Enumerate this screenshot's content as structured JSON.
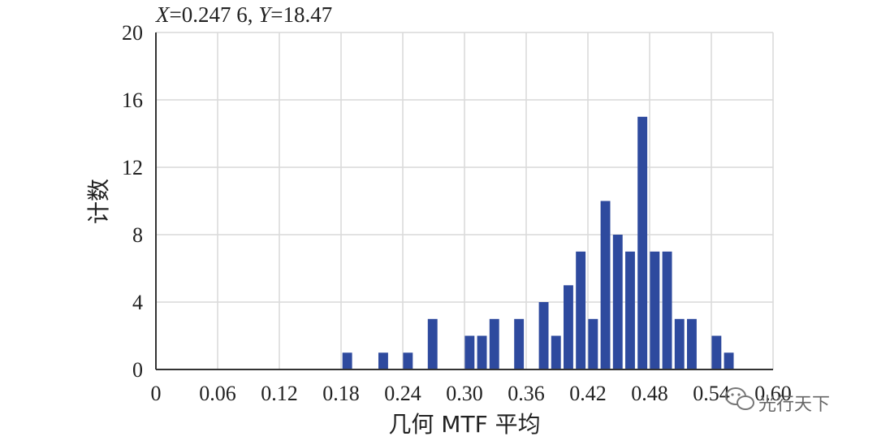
{
  "readout": {
    "x_var": "X",
    "x_value": "=0.247 6, ",
    "y_var": "Y",
    "y_value": "=18.47"
  },
  "watermark": {
    "text": "光行天下",
    "icon": "wechat-icon"
  },
  "colors": {
    "bar": "#2e4a9e",
    "grid": "#d9d9d9",
    "axis": "#333333"
  },
  "chart_data": {
    "type": "bar",
    "xlabel": "几何 MTF 平均",
    "ylabel": "计数",
    "xlim": [
      0,
      0.6
    ],
    "ylim": [
      0,
      20
    ],
    "grid": true,
    "x_tick_values": [
      0,
      0.06,
      0.12,
      0.18,
      0.24,
      0.3,
      0.36,
      0.42,
      0.48,
      0.54,
      0.6
    ],
    "x_tick_labels": [
      "0",
      "0.06",
      "0.12",
      "0.18",
      "0.24",
      "0.30",
      "0.36",
      "0.42",
      "0.48",
      "0.54",
      "0.60"
    ],
    "y_tick_values": [
      0,
      4,
      8,
      12,
      16,
      20
    ],
    "y_tick_labels": [
      "0",
      "4",
      "8",
      "12",
      "16",
      "20"
    ],
    "bin_width": 0.012,
    "x": [
      0.186,
      0.221,
      0.245,
      0.269,
      0.305,
      0.317,
      0.329,
      0.353,
      0.377,
      0.389,
      0.401,
      0.413,
      0.425,
      0.437,
      0.449,
      0.461,
      0.473,
      0.485,
      0.497,
      0.509,
      0.521,
      0.545,
      0.557
    ],
    "values": [
      1,
      1,
      1,
      3,
      2,
      2,
      3,
      3,
      4,
      2,
      5,
      7,
      3,
      10,
      8,
      7,
      15,
      7,
      7,
      3,
      3,
      2,
      1
    ]
  }
}
